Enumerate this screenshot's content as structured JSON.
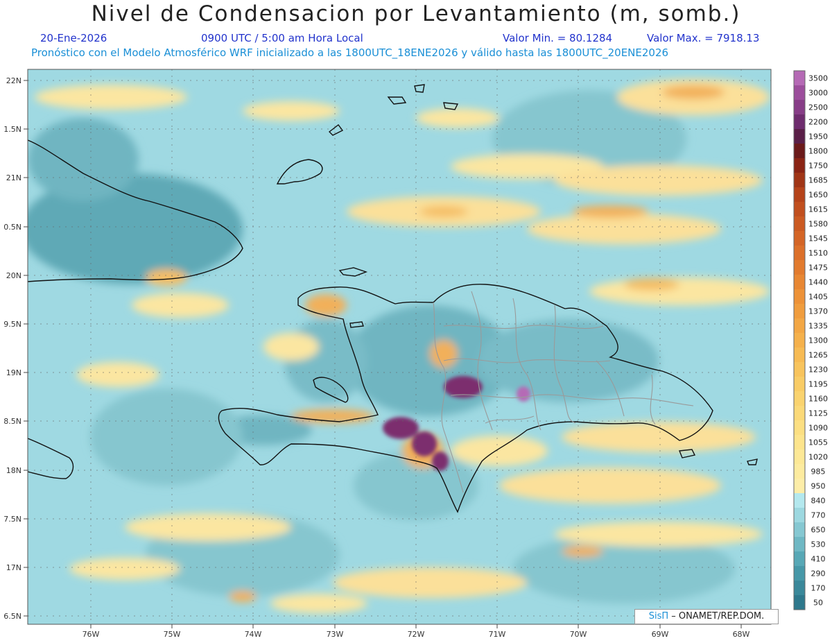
{
  "header": {
    "title": "Nivel de Condensacion por Levantamiento (m, somb.)",
    "date": "20-Ene-2026",
    "time": "0900 UTC / 5:00 am Hora Local",
    "min_value": "Valor Min. = 80.1284",
    "max_value": "Valor Max. = 7918.13",
    "forecast_note": "Pronóstico con el Modelo Atmosférico WRF inicializado a las 1800UTC_18ENE2026 y válido hasta las  1800UTC_20ENE2026"
  },
  "axes": {
    "lat_ticks": [
      "22N",
      "1.5N",
      "21N",
      "0.5N",
      "20N",
      "9.5N",
      "19N",
      "8.5N",
      "18N",
      "7.5N",
      "17N",
      "6.5N"
    ],
    "lon_ticks": [
      "76W",
      "75W",
      "74W",
      "73W",
      "72W",
      "71W",
      "70W",
      "69W",
      "68W"
    ]
  },
  "legend": {
    "labels": [
      "3500",
      "3000",
      "2500",
      "2200",
      "1950",
      "1800",
      "1750",
      "1685",
      "1650",
      "1615",
      "1580",
      "1545",
      "1510",
      "1475",
      "1440",
      "1405",
      "1370",
      "1335",
      "1300",
      "1265",
      "1230",
      "1195",
      "1160",
      "1125",
      "1090",
      "1055",
      "1020",
      "985",
      "950",
      "840",
      "770",
      "650",
      "530",
      "410",
      "290",
      "170",
      "50"
    ],
    "colors": [
      "#b56ab5",
      "#9c4e9c",
      "#873d87",
      "#6e2c6e",
      "#5a1f48",
      "#6b1a1a",
      "#8a2414",
      "#a03516",
      "#b5431a",
      "#c14f1e",
      "#cb5a22",
      "#d46526",
      "#dc702a",
      "#e27b2e",
      "#e88733",
      "#ed9238",
      "#f09d3e",
      "#f3a745",
      "#f5b14c",
      "#f7bb54",
      "#f8c45d",
      "#f9cc66",
      "#fad36f",
      "#fbd978",
      "#fcdf82",
      "#fde48c",
      "#fde896",
      "#fdeb9f",
      "#fdeda8",
      "#b4e8ee",
      "#9dd8e0",
      "#86c8d2",
      "#6fb8c4",
      "#58a8b6",
      "#4798a8",
      "#3a889a",
      "#2e788c"
    ]
  },
  "credit": {
    "brand": "SisΠ",
    "org": " – ONAMET/REP.DOM."
  }
}
